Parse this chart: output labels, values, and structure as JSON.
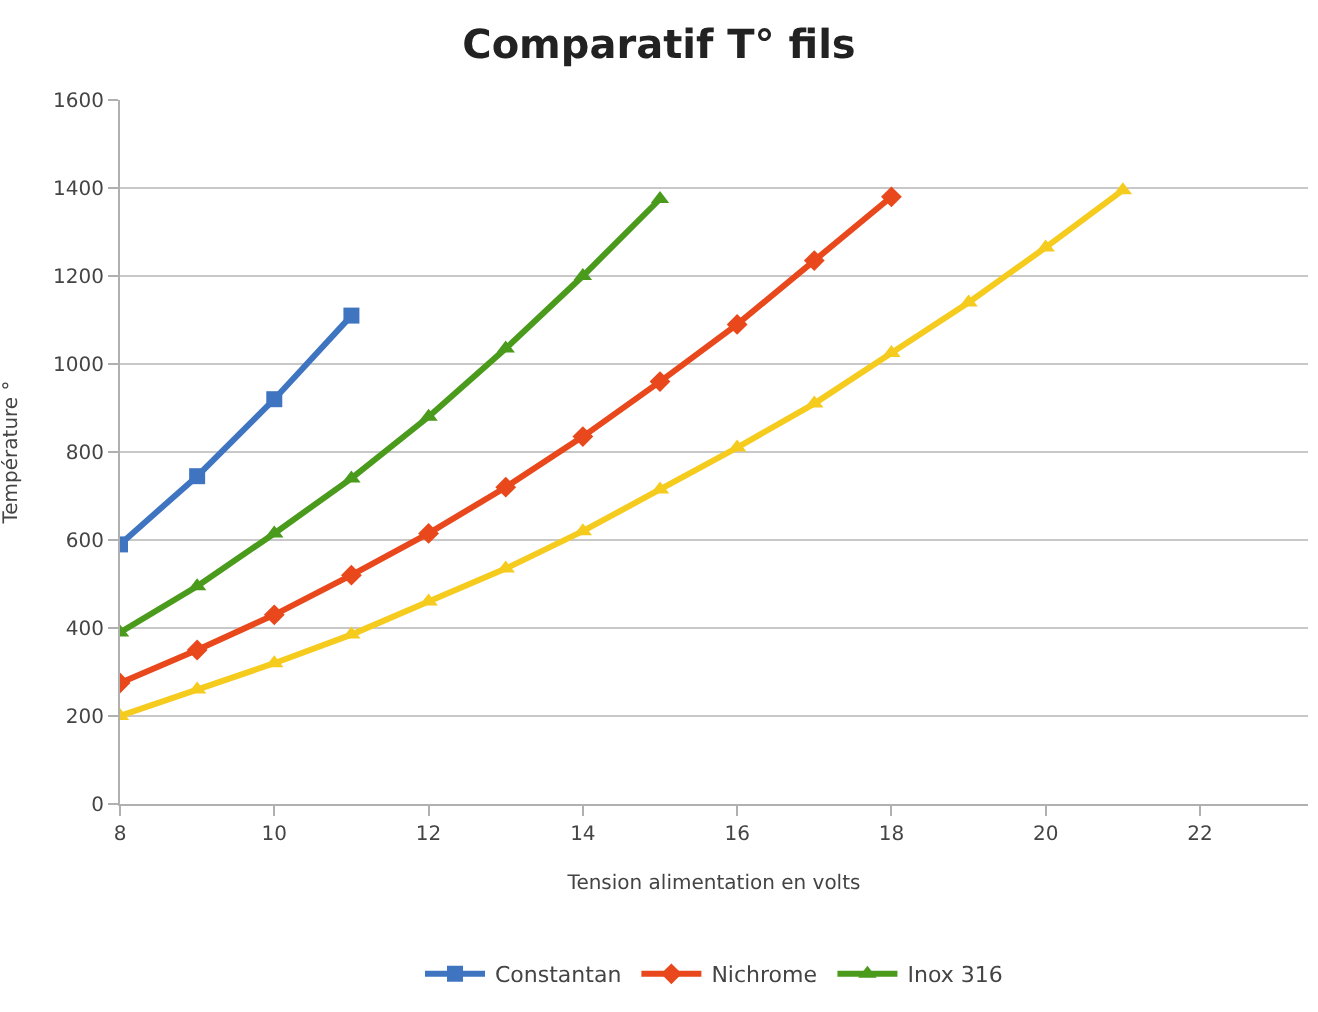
{
  "chart_data": {
    "type": "line",
    "title": "Comparatif T° fils",
    "xlabel": "Tension alimentation en volts",
    "ylabel": "Température °",
    "xlim": [
      8,
      23.4
    ],
    "xticks": [
      8,
      10,
      12,
      14,
      16,
      18,
      20,
      22
    ],
    "ylim": [
      0,
      1600
    ],
    "yticks": [
      0,
      200,
      400,
      600,
      800,
      1000,
      1200,
      1400,
      1600
    ],
    "grid": "y",
    "legend": "bottom",
    "line_style": "solid",
    "series": [
      {
        "name": "Constantan",
        "color": "#3f75c0",
        "marker": "square",
        "x": [
          8,
          9,
          10,
          11
        ],
        "values": [
          590,
          745,
          920,
          1110
        ]
      },
      {
        "name": "Nichrome",
        "color": "#e8481c",
        "marker": "diamond",
        "x": [
          8,
          9,
          10,
          11,
          12,
          13,
          14,
          15,
          16,
          17,
          18
        ],
        "values": [
          275,
          350,
          430,
          520,
          615,
          720,
          835,
          960,
          1090,
          1235,
          1380
        ]
      },
      {
        "color": "#f5cb1e",
        "marker": "triangle",
        "x": [
          8,
          9,
          10,
          11,
          12,
          13,
          14,
          15,
          16,
          17,
          18,
          19,
          20,
          21
        ],
        "values": [
          200,
          260,
          320,
          385,
          460,
          535,
          620,
          715,
          810,
          910,
          1025,
          1140,
          1265,
          1395
        ]
      },
      {
        "name": "Inox 316",
        "color": "#4a9a1c",
        "marker": "triangle",
        "x": [
          8,
          9,
          10,
          11,
          12,
          13,
          14,
          15
        ],
        "values": [
          390,
          495,
          615,
          740,
          880,
          1035,
          1200,
          1375
        ]
      }
    ]
  }
}
